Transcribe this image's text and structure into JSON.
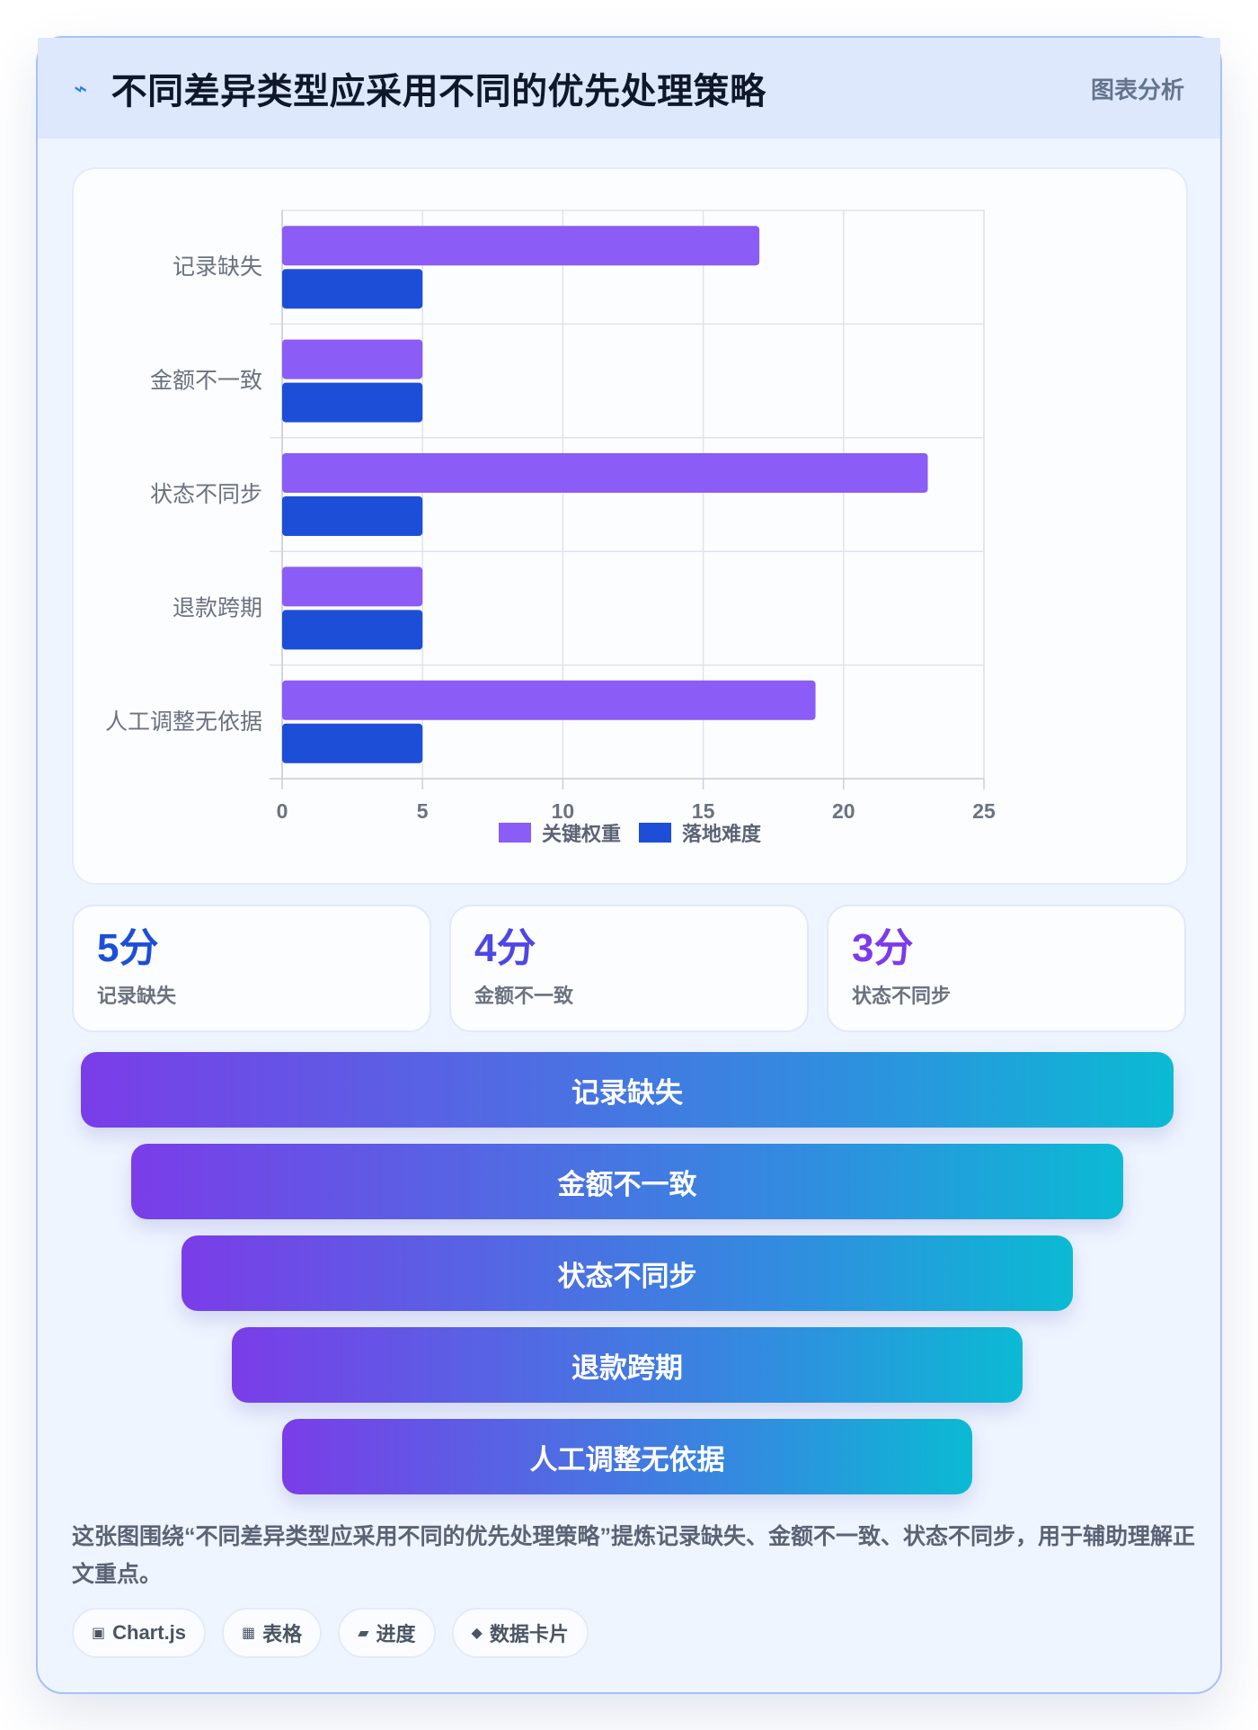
{
  "header": {
    "icon": "lightning-icon",
    "title": "不同差异类型应采用不同的优先处理策略",
    "tag": "图表分析"
  },
  "chart_data": {
    "type": "bar",
    "orientation": "horizontal",
    "categories": [
      "记录缺失",
      "金额不一致",
      "状态不同步",
      "退款跨期",
      "人工调整无依据"
    ],
    "series": [
      {
        "name": "关键权重",
        "color": "#8b5cf6",
        "values": [
          17,
          5,
          23,
          5,
          19
        ]
      },
      {
        "name": "落地难度",
        "color": "#1d4ed8",
        "values": [
          5,
          5,
          5,
          5,
          5
        ]
      }
    ],
    "xlim": [
      0,
      25
    ],
    "xticks": [
      "0",
      "5",
      "10",
      "15",
      "20",
      "25"
    ],
    "grid": true,
    "legend_position": "bottom"
  },
  "stats": [
    {
      "value": "5分",
      "label": "记录缺失",
      "color": "#1d4ed8"
    },
    {
      "value": "4分",
      "label": "金额不一致",
      "color": "#4f46e5"
    },
    {
      "value": "3分",
      "label": "状态不同步",
      "color": "#7c3aed"
    }
  ],
  "funnel": [
    "记录缺失",
    "金额不一致",
    "状态不同步",
    "退款跨期",
    "人工调整无依据"
  ],
  "summary": "这张图围绕“不同差异类型应采用不同的优先处理策略”提炼记录缺失、金额不一致、状态不同步，用于辅助理解正文重点。",
  "chips": [
    {
      "icon": "▣",
      "icon_name": "chartjs-icon",
      "label": "Chart.js"
    },
    {
      "icon": "▦",
      "icon_name": "table-icon",
      "label": "表格"
    },
    {
      "icon": "▰",
      "icon_name": "progress-icon",
      "label": "进度"
    },
    {
      "icon": "◆",
      "icon_name": "data-card-icon",
      "label": "数据卡片"
    }
  ]
}
